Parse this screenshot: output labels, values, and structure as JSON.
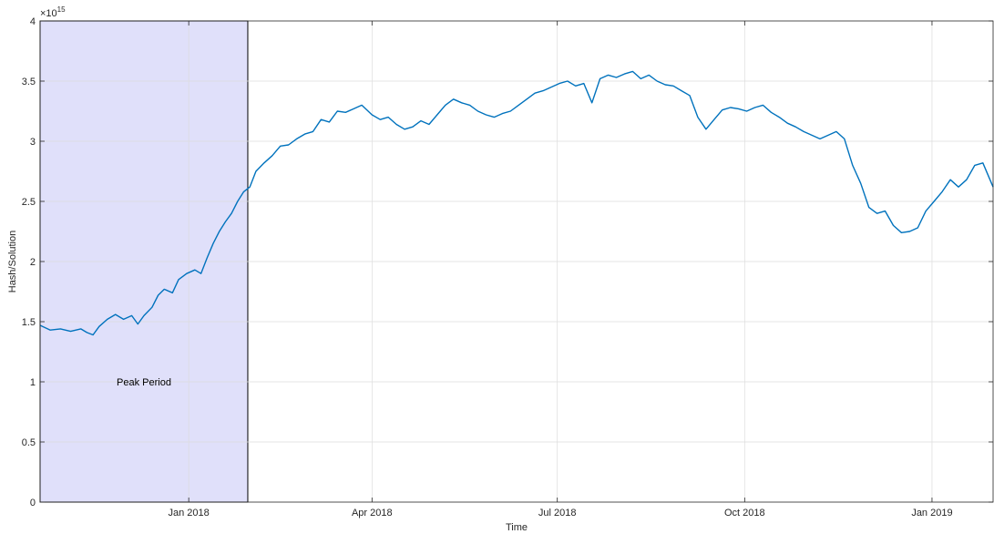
{
  "chart_data": {
    "type": "line",
    "title": "",
    "xlabel": "Time",
    "ylabel": "Hash/Solution",
    "y_exponent_label": "×10",
    "y_exponent_power": "15",
    "ylim": [
      0,
      4
    ],
    "xlim": [
      "2017-10-20",
      "2019-01-31"
    ],
    "grid": true,
    "xticks": [
      {
        "date": "2018-01-01",
        "label": "Jan 2018"
      },
      {
        "date": "2018-04-01",
        "label": "Apr 2018"
      },
      {
        "date": "2018-07-01",
        "label": "Jul 2018"
      },
      {
        "date": "2018-10-01",
        "label": "Oct 2018"
      },
      {
        "date": "2019-01-01",
        "label": "Jan 2019"
      }
    ],
    "yticks": [
      {
        "value": 0,
        "label": "0"
      },
      {
        "value": 0.5,
        "label": "0.5"
      },
      {
        "value": 1,
        "label": "1"
      },
      {
        "value": 1.5,
        "label": "1.5"
      },
      {
        "value": 2,
        "label": "2"
      },
      {
        "value": 2.5,
        "label": "2.5"
      },
      {
        "value": 3,
        "label": "3"
      },
      {
        "value": 3.5,
        "label": "3.5"
      },
      {
        "value": 4,
        "label": "4"
      }
    ],
    "shaded_region": {
      "label": "Peak Period",
      "x_start": "2017-10-20",
      "x_end": "2018-01-30",
      "color": "#e0e0fa"
    },
    "series": [
      {
        "color": "#0072bd",
        "points": [
          [
            "2017-10-20",
            1.47
          ],
          [
            "2017-10-25",
            1.43
          ],
          [
            "2017-10-30",
            1.44
          ],
          [
            "2017-11-04",
            1.42
          ],
          [
            "2017-11-09",
            1.44
          ],
          [
            "2017-11-12",
            1.41
          ],
          [
            "2017-11-15",
            1.39
          ],
          [
            "2017-11-18",
            1.46
          ],
          [
            "2017-11-22",
            1.52
          ],
          [
            "2017-11-26",
            1.56
          ],
          [
            "2017-11-30",
            1.52
          ],
          [
            "2017-12-04",
            1.55
          ],
          [
            "2017-12-07",
            1.48
          ],
          [
            "2017-12-10",
            1.55
          ],
          [
            "2017-12-14",
            1.62
          ],
          [
            "2017-12-17",
            1.72
          ],
          [
            "2017-12-20",
            1.77
          ],
          [
            "2017-12-24",
            1.74
          ],
          [
            "2017-12-27",
            1.85
          ],
          [
            "2017-12-31",
            1.9
          ],
          [
            "2018-01-04",
            1.93
          ],
          [
            "2018-01-07",
            1.9
          ],
          [
            "2018-01-10",
            2.03
          ],
          [
            "2018-01-13",
            2.15
          ],
          [
            "2018-01-16",
            2.25
          ],
          [
            "2018-01-19",
            2.33
          ],
          [
            "2018-01-22",
            2.4
          ],
          [
            "2018-01-25",
            2.5
          ],
          [
            "2018-01-28",
            2.58
          ],
          [
            "2018-01-31",
            2.62
          ],
          [
            "2018-02-03",
            2.75
          ],
          [
            "2018-02-07",
            2.82
          ],
          [
            "2018-02-11",
            2.88
          ],
          [
            "2018-02-15",
            2.96
          ],
          [
            "2018-02-19",
            2.97
          ],
          [
            "2018-02-23",
            3.02
          ],
          [
            "2018-02-27",
            3.06
          ],
          [
            "2018-03-03",
            3.08
          ],
          [
            "2018-03-07",
            3.18
          ],
          [
            "2018-03-11",
            3.16
          ],
          [
            "2018-03-15",
            3.25
          ],
          [
            "2018-03-19",
            3.24
          ],
          [
            "2018-03-23",
            3.27
          ],
          [
            "2018-03-27",
            3.3
          ],
          [
            "2018-04-01",
            3.22
          ],
          [
            "2018-04-05",
            3.18
          ],
          [
            "2018-04-09",
            3.2
          ],
          [
            "2018-04-13",
            3.14
          ],
          [
            "2018-04-17",
            3.1
          ],
          [
            "2018-04-21",
            3.12
          ],
          [
            "2018-04-25",
            3.17
          ],
          [
            "2018-04-29",
            3.14
          ],
          [
            "2018-05-03",
            3.22
          ],
          [
            "2018-05-07",
            3.3
          ],
          [
            "2018-05-11",
            3.35
          ],
          [
            "2018-05-15",
            3.32
          ],
          [
            "2018-05-19",
            3.3
          ],
          [
            "2018-05-23",
            3.25
          ],
          [
            "2018-05-27",
            3.22
          ],
          [
            "2018-05-31",
            3.2
          ],
          [
            "2018-06-04",
            3.23
          ],
          [
            "2018-06-08",
            3.25
          ],
          [
            "2018-06-12",
            3.3
          ],
          [
            "2018-06-16",
            3.35
          ],
          [
            "2018-06-20",
            3.4
          ],
          [
            "2018-06-24",
            3.42
          ],
          [
            "2018-06-28",
            3.45
          ],
          [
            "2018-07-02",
            3.48
          ],
          [
            "2018-07-06",
            3.5
          ],
          [
            "2018-07-10",
            3.46
          ],
          [
            "2018-07-14",
            3.48
          ],
          [
            "2018-07-18",
            3.32
          ],
          [
            "2018-07-22",
            3.52
          ],
          [
            "2018-07-26",
            3.55
          ],
          [
            "2018-07-30",
            3.53
          ],
          [
            "2018-08-03",
            3.56
          ],
          [
            "2018-08-07",
            3.58
          ],
          [
            "2018-08-11",
            3.52
          ],
          [
            "2018-08-15",
            3.55
          ],
          [
            "2018-08-19",
            3.5
          ],
          [
            "2018-08-23",
            3.47
          ],
          [
            "2018-08-27",
            3.46
          ],
          [
            "2018-08-31",
            3.42
          ],
          [
            "2018-09-04",
            3.38
          ],
          [
            "2018-09-08",
            3.2
          ],
          [
            "2018-09-12",
            3.1
          ],
          [
            "2018-09-16",
            3.18
          ],
          [
            "2018-09-20",
            3.26
          ],
          [
            "2018-09-24",
            3.28
          ],
          [
            "2018-09-28",
            3.27
          ],
          [
            "2018-10-02",
            3.25
          ],
          [
            "2018-10-06",
            3.28
          ],
          [
            "2018-10-10",
            3.3
          ],
          [
            "2018-10-14",
            3.24
          ],
          [
            "2018-10-18",
            3.2
          ],
          [
            "2018-10-22",
            3.15
          ],
          [
            "2018-10-26",
            3.12
          ],
          [
            "2018-10-30",
            3.08
          ],
          [
            "2018-11-03",
            3.05
          ],
          [
            "2018-11-07",
            3.02
          ],
          [
            "2018-11-11",
            3.05
          ],
          [
            "2018-11-15",
            3.08
          ],
          [
            "2018-11-19",
            3.02
          ],
          [
            "2018-11-23",
            2.8
          ],
          [
            "2018-11-27",
            2.65
          ],
          [
            "2018-12-01",
            2.45
          ],
          [
            "2018-12-05",
            2.4
          ],
          [
            "2018-12-09",
            2.42
          ],
          [
            "2018-12-13",
            2.3
          ],
          [
            "2018-12-17",
            2.24
          ],
          [
            "2018-12-21",
            2.25
          ],
          [
            "2018-12-25",
            2.28
          ],
          [
            "2018-12-29",
            2.42
          ],
          [
            "2019-01-02",
            2.5
          ],
          [
            "2019-01-06",
            2.58
          ],
          [
            "2019-01-10",
            2.68
          ],
          [
            "2019-01-14",
            2.62
          ],
          [
            "2019-01-18",
            2.68
          ],
          [
            "2019-01-22",
            2.8
          ],
          [
            "2019-01-26",
            2.82
          ],
          [
            "2019-01-31",
            2.62
          ]
        ]
      }
    ]
  }
}
